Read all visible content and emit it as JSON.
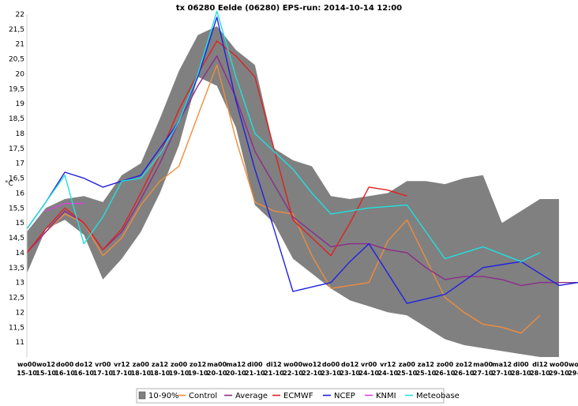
{
  "chart_data": {
    "type": "line",
    "title": "tx 06280 Eelde (06280) EPS-run: 2014-10-14 12:00",
    "ylabel": "°C",
    "ylim": [
      10.5,
      22
    ],
    "yticks": [
      11,
      11.5,
      12,
      12.5,
      13,
      13.5,
      14,
      14.5,
      15,
      15.5,
      16,
      16.5,
      17,
      17.5,
      18,
      18.5,
      19,
      19.5,
      20,
      20.5,
      21,
      21.5,
      22
    ],
    "categories": [
      [
        "wo00",
        "15-10"
      ],
      [
        "wo12",
        "15-10"
      ],
      [
        "do00",
        "16-10"
      ],
      [
        "do12",
        "16-10"
      ],
      [
        "vr00",
        "17-10"
      ],
      [
        "vr12",
        "17-10"
      ],
      [
        "za00",
        "18-10"
      ],
      [
        "za12",
        "18-10"
      ],
      [
        "zo00",
        "19-10"
      ],
      [
        "zo12",
        "19-10"
      ],
      [
        "ma00",
        "20-10"
      ],
      [
        "ma12",
        "20-10"
      ],
      [
        "di00",
        "21-10"
      ],
      [
        "di12",
        "21-10"
      ],
      [
        "wo00",
        "22-10"
      ],
      [
        "wo12",
        "22-10"
      ],
      [
        "do00",
        "23-10"
      ],
      [
        "do12",
        "23-10"
      ],
      [
        "vr00",
        "24-10"
      ],
      [
        "vr12",
        "24-10"
      ],
      [
        "za00",
        "25-10"
      ],
      [
        "za12",
        "25-10"
      ],
      [
        "zo00",
        "26-10"
      ],
      [
        "zo12",
        "26-10"
      ],
      [
        "ma00",
        "27-10"
      ],
      [
        "ma12",
        "27-10"
      ],
      [
        "di00",
        "28-10"
      ],
      [
        "di12",
        "28-10"
      ],
      [
        "wo00",
        "29-10"
      ],
      [
        "wo12",
        "29-10"
      ]
    ],
    "band": {
      "name": "10-90%",
      "color": "#808080",
      "x": [
        0,
        1,
        2,
        3,
        4,
        5,
        6,
        7,
        8,
        9,
        10,
        11,
        12,
        13,
        14,
        15,
        16,
        17,
        18,
        19,
        20,
        21,
        22,
        23,
        24,
        25,
        26,
        27,
        28
      ],
      "low": [
        13.3,
        14.8,
        15.1,
        14.6,
        13.1,
        13.8,
        14.7,
        16.0,
        17.6,
        19.9,
        19.6,
        18.2,
        15.6,
        15.0,
        13.8,
        13.3,
        12.8,
        12.4,
        12.2,
        12.0,
        11.9,
        11.5,
        11.1,
        10.9,
        10.8,
        10.7,
        10.6,
        10.5,
        10.5
      ],
      "high": [
        14.7,
        15.5,
        15.8,
        15.9,
        15.7,
        16.6,
        17.0,
        18.5,
        20.1,
        21.3,
        21.6,
        20.8,
        20.3,
        17.5,
        17.1,
        16.9,
        15.9,
        15.8,
        15.9,
        16.0,
        16.4,
        16.4,
        16.3,
        16.5,
        16.6,
        15.0,
        15.4,
        15.8,
        15.8
      ]
    },
    "series": [
      {
        "name": "Control",
        "color": "#f08c3c",
        "x": [
          0,
          1,
          2,
          3,
          4,
          5,
          6,
          7,
          8,
          9,
          10,
          11,
          12,
          13,
          14,
          15,
          16,
          17,
          18,
          19,
          20,
          21,
          22,
          23,
          24,
          25,
          26,
          27
        ],
        "values": [
          14.0,
          14.7,
          15.3,
          15.0,
          13.9,
          14.5,
          15.6,
          16.4,
          16.9,
          18.6,
          20.3,
          17.8,
          15.7,
          15.4,
          15.3,
          13.9,
          12.8,
          12.9,
          13.0,
          14.4,
          15.1,
          13.8,
          12.5,
          12.0,
          11.6,
          11.5,
          11.3,
          11.9
        ]
      },
      {
        "name": "Average",
        "color": "#8c2c8c",
        "x": [
          0,
          1,
          2,
          3,
          4,
          5,
          6,
          7,
          8,
          9,
          10,
          11,
          12,
          13,
          14,
          15,
          16,
          17,
          18,
          19,
          20,
          21,
          22,
          23,
          24,
          25,
          26,
          27,
          28,
          29
        ],
        "values": [
          14.0,
          14.7,
          15.4,
          15.0,
          14.1,
          14.7,
          15.8,
          17.0,
          18.4,
          19.6,
          20.6,
          19.2,
          17.4,
          16.3,
          15.2,
          14.7,
          14.2,
          14.3,
          14.3,
          14.1,
          14.0,
          13.5,
          13.1,
          13.2,
          13.2,
          13.1,
          12.9,
          13.0,
          13.0,
          13.0
        ]
      },
      {
        "name": "ECMWF",
        "color": "#e02020",
        "x": [
          0,
          1,
          2,
          3,
          4,
          5,
          6,
          7,
          8,
          9,
          10,
          11,
          12,
          13,
          14,
          15,
          16,
          17,
          18,
          19,
          20
        ],
        "values": [
          14.0,
          14.8,
          15.5,
          15.0,
          14.1,
          14.8,
          16.0,
          17.3,
          18.8,
          20.0,
          21.1,
          20.6,
          19.9,
          17.5,
          15.1,
          14.5,
          13.9,
          15.0,
          16.2,
          16.1,
          15.9
        ]
      },
      {
        "name": "NCEP",
        "color": "#2020e0",
        "x": [
          0,
          1,
          2,
          3,
          4,
          5,
          6,
          7,
          8,
          9,
          10,
          11,
          12,
          13,
          14,
          15,
          16,
          17,
          18,
          19,
          20,
          21,
          22,
          23,
          24,
          25,
          26,
          27,
          28,
          29
        ],
        "values": [
          14.8,
          15.7,
          16.7,
          16.5,
          16.2,
          16.4,
          16.6,
          17.5,
          18.4,
          19.9,
          21.9,
          19.1,
          16.8,
          14.8,
          12.7,
          12.85,
          13.0,
          13.7,
          14.3,
          13.3,
          12.3,
          12.45,
          12.6,
          13.05,
          13.5,
          13.6,
          13.7,
          13.3,
          12.9,
          13.0
        ]
      },
      {
        "name": "KNMI",
        "color": "#e040e0",
        "x": [
          1,
          2,
          3
        ],
        "values": [
          15.4,
          15.65,
          15.65
        ]
      },
      {
        "name": "Meteobase",
        "color": "#20e0e0",
        "x": [
          0,
          1,
          2,
          3,
          4,
          5,
          6,
          7,
          8,
          9,
          10,
          11,
          12,
          13,
          14,
          15,
          16,
          17,
          18,
          19,
          20,
          21,
          22,
          23,
          24,
          25,
          26,
          27
        ],
        "values": [
          14.8,
          15.7,
          16.6,
          14.3,
          15.2,
          16.4,
          16.5,
          17.3,
          18.4,
          20.0,
          22.1,
          19.9,
          18.0,
          17.4,
          16.8,
          16.0,
          15.3,
          15.4,
          15.5,
          15.55,
          15.6,
          14.7,
          13.8,
          14.0,
          14.2,
          13.95,
          13.7,
          14.0
        ]
      }
    ],
    "legend_position": "bottom",
    "grid": false
  }
}
